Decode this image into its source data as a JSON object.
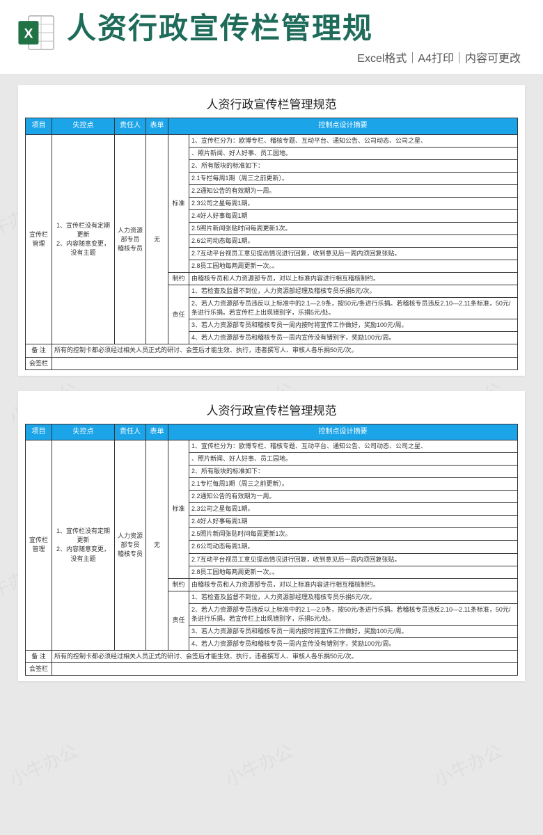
{
  "header": {
    "main_title": "人资行政宣传栏管理规",
    "subtitle": "Excel格式｜A4打印｜内容可更改"
  },
  "colors": {
    "title_color": "#1e6b5a",
    "header_bg": "#1ca4e8",
    "border": "#333333",
    "page_bg": "#e8e8e8",
    "sheet_bg": "#ffffff",
    "excel_green": "#217346"
  },
  "sheet": {
    "title": "人资行政宣传栏管理规范",
    "columns": [
      "项目",
      "失控点",
      "责任人",
      "表单",
      "控制点设计摘要"
    ],
    "project": "宣传栏管理",
    "loss_points": "1、宣传栏没有定期更新\n2、内容随意变更，没有主题",
    "responsible": "人力资源部专员\n稽核专员",
    "form": "无",
    "sections": {
      "standard_label": "标准",
      "standard_rows": [
        "1、宣传栏分为：欧博专栏、稽核专题、互动平台、通知公告、公司动态、公司之星、",
        "、照片新闻、好人好事、员工园地。",
        "2、所有版块的标准如下：",
        "2.1专栏每周1期（周三之前更新）。",
        "2.2通知公告的有效期为一周。",
        "2.3公司之星每周1期。",
        "2.4好人好事每周1期",
        "2.5照片新闻张贴时间每周更新1次。",
        "2.6公司动态每周1期。",
        "2.7互动平台视员工意见提出情况进行回复，收到意见后一周内须回复张贴。",
        "2.8员工园地每两周更新一次。。"
      ],
      "control_label": "制约",
      "control_rows": [
        "由稽核专员和人力资源部专员，对以上标准内容进行相互稽核制约。"
      ],
      "duty_label": "责任",
      "duty_rows": [
        "1、若检查及监督不到位，人力资源部经理及稽核专员乐捐5元/次。",
        "2、若人力资源部专员违反以上标准中的2.1—2.9条，按50元/条进行乐捐。若稽核专员违反2.10—2.11条标准，50元/条进行乐捐。若宣传栏上出现错别字，乐捐5元/处。",
        "3、若人力资源部专员和稽核专员一周内按时将宣传工作做好，奖励100元/周。",
        "4、若人力资源部专员和稽核专员一周内宣传没有错别字，奖励100元/周。"
      ]
    },
    "footer_note_label": "备  注",
    "footer_note": "所有的控制卡都必须经过相关人员正式的研讨、会签后才能生效、执行，违者撰写人、审核人各乐捐50元/次。",
    "sign_label": "会签栏"
  }
}
